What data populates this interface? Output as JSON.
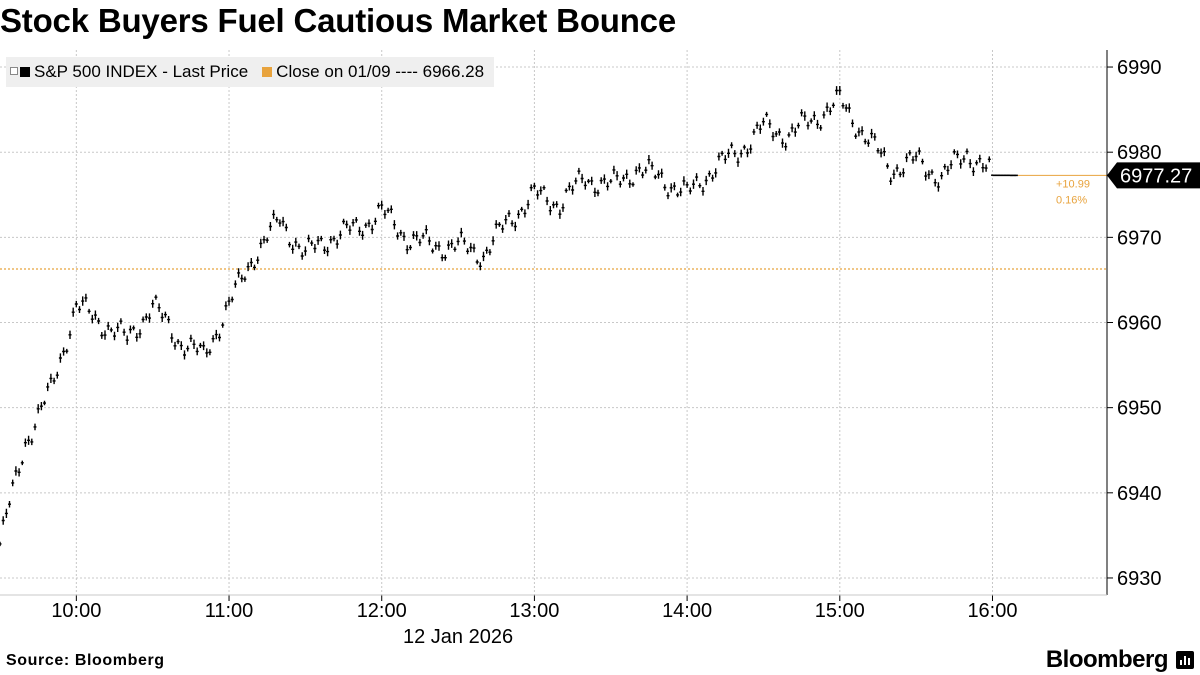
{
  "title": "Stock Buyers Fuel Cautious Market Bounce",
  "source": "Source: Bloomberg",
  "brand": "Bloomberg",
  "legend": {
    "series_label": "S&P 500 INDEX - Last Price",
    "ref_label": "Close on 01/09 ---- 6966.28"
  },
  "colors": {
    "price": "#000000",
    "reference": "#e8a33d",
    "grid": "#c8c8c8",
    "legend_bg": "#efefef"
  },
  "chart_data": {
    "type": "line",
    "title": "Stock Buyers Fuel Cautious Market Bounce",
    "date_label": "12 Jan 2026",
    "xlim": [
      "09:30",
      "16:45"
    ],
    "x_ticks": [
      "10:00",
      "11:00",
      "12:00",
      "13:00",
      "14:00",
      "15:00",
      "16:00"
    ],
    "ylim": [
      6928,
      6992
    ],
    "y_ticks": [
      6930,
      6940,
      6950,
      6960,
      6970,
      6980,
      6990
    ],
    "y_axis_side": "right",
    "grid": true,
    "legend_position": "top-left",
    "series": [
      {
        "name": "S&P 500 INDEX - Last Price",
        "style": "bar-ticks",
        "x": [
          "09:30",
          "09:40",
          "09:50",
          "10:00",
          "10:10",
          "10:20",
          "10:30",
          "10:40",
          "10:50",
          "11:00",
          "11:10",
          "11:20",
          "11:30",
          "11:40",
          "11:50",
          "12:00",
          "12:10",
          "12:20",
          "12:30",
          "12:40",
          "12:50",
          "13:00",
          "13:10",
          "13:20",
          "13:30",
          "13:40",
          "13:50",
          "14:00",
          "14:10",
          "14:20",
          "14:30",
          "14:40",
          "14:50",
          "15:00",
          "15:10",
          "15:20",
          "15:30",
          "15:40",
          "15:50",
          "16:00",
          "16:10"
        ],
        "values": [
          6934,
          6946,
          6952,
          6962,
          6960,
          6958,
          6962,
          6958,
          6956,
          6962,
          6968,
          6972,
          6968,
          6970,
          6971,
          6973,
          6970,
          6969,
          6969,
          6968,
          6972,
          6975,
          6974,
          6977,
          6976,
          6978,
          6977,
          6975,
          6978,
          6980,
          6983,
          6982,
          6984,
          6986,
          6982,
          6978,
          6979,
          6977,
          6980,
          6977.3,
          6977.27
        ]
      }
    ],
    "reference_line": {
      "label": "Close on 01/09",
      "value": 6966.28
    },
    "last_value": "6977.27",
    "change_abs": "+10.99",
    "change_pct": "0.16%"
  }
}
